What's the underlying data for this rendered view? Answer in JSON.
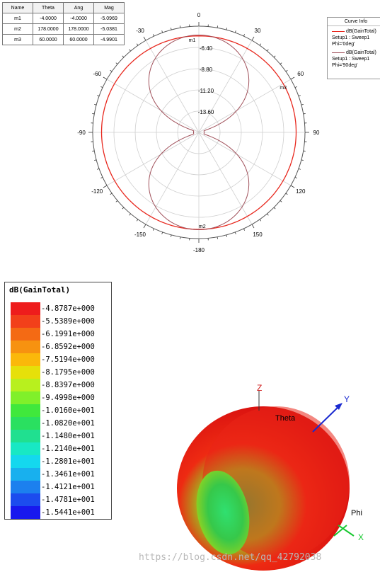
{
  "marker_table": {
    "headers": [
      "Name",
      "Theta",
      "Ang",
      "Mag"
    ],
    "rows": [
      [
        "m1",
        "-4.0000",
        "-4.0000",
        "-5.0969"
      ],
      [
        "m2",
        "178.0000",
        "178.0000",
        "-5.0381"
      ],
      [
        "m3",
        "60.0000",
        "60.0000",
        "-4.9901"
      ]
    ]
  },
  "curve_info": {
    "title": "Curve Info",
    "entries": [
      {
        "name": "dB(GainTotal)",
        "setup": "Setup1 : Sweep1",
        "phi": "Phi='0deg'",
        "color": "#e8281e"
      },
      {
        "name": "dB(GainTotal)",
        "setup": "Setup1 : Sweep1",
        "phi": "Phi='90deg'",
        "color": "#a0505a"
      }
    ]
  },
  "chart_data": [
    {
      "type": "polar",
      "angle_labels": [
        "0",
        "30",
        "60",
        "90",
        "120",
        "150",
        "-180",
        "-150",
        "-120",
        "-90",
        "-60",
        "-30"
      ],
      "radial_ticks": [
        "-6.40",
        "-8.80",
        "-11.20",
        "-13.60"
      ],
      "radial_range": [
        -16,
        -4
      ],
      "grid": true,
      "series": [
        {
          "name": "dB(GainTotal) Setup1 : Sweep1 Phi='0deg'",
          "color": "#e8281e",
          "theta_deg": [
            0,
            30,
            60,
            90,
            120,
            150,
            180,
            210,
            240,
            270,
            300,
            330
          ],
          "values": [
            -5.1,
            -5.05,
            -4.99,
            -5.0,
            -5.02,
            -5.04,
            -5.04,
            -5.04,
            -5.02,
            -5.0,
            -4.99,
            -5.05
          ]
        },
        {
          "name": "dB(GainTotal) Setup1 : Sweep1 Phi='90deg'",
          "color": "#a0505a",
          "pattern": "dipole",
          "peak_dB": -5.0,
          "null_dB": -15.4
        }
      ],
      "markers": [
        {
          "name": "m1",
          "theta": -4,
          "value": -5.0969
        },
        {
          "name": "m2",
          "theta": 178,
          "value": -5.0381
        },
        {
          "name": "m3",
          "theta": 60,
          "value": -4.9901
        }
      ]
    },
    {
      "type": "heatmap",
      "title": "dB(GainTotal)",
      "legend_values": [
        "-4.8787e+000",
        "-5.5389e+000",
        "-6.1991e+000",
        "-6.8592e+000",
        "-7.5194e+000",
        "-8.1795e+000",
        "-8.8397e+000",
        "-9.4998e+000",
        "-1.0160e+001",
        "-1.0820e+001",
        "-1.1480e+001",
        "-1.2140e+001",
        "-1.2801e+001",
        "-1.3461e+001",
        "-1.4121e+001",
        "-1.4781e+001",
        "-1.5441e+001"
      ],
      "legend_colors": [
        "#ee1c1c",
        "#f2401a",
        "#f46a14",
        "#f79210",
        "#fbb80a",
        "#e6e00a",
        "#b8f01e",
        "#80f02a",
        "#40e83c",
        "#2ae060",
        "#20e090",
        "#18e8c4",
        "#14d8ee",
        "#18b0ee",
        "#1c80ee",
        "#1c4cee",
        "#1818ee"
      ],
      "axes": {
        "z": "Z",
        "y": "Y",
        "x": "X",
        "theta": "Theta",
        "phi": "Phi"
      }
    }
  ],
  "watermark": "https://blog.csdn.net/qq_42792038"
}
